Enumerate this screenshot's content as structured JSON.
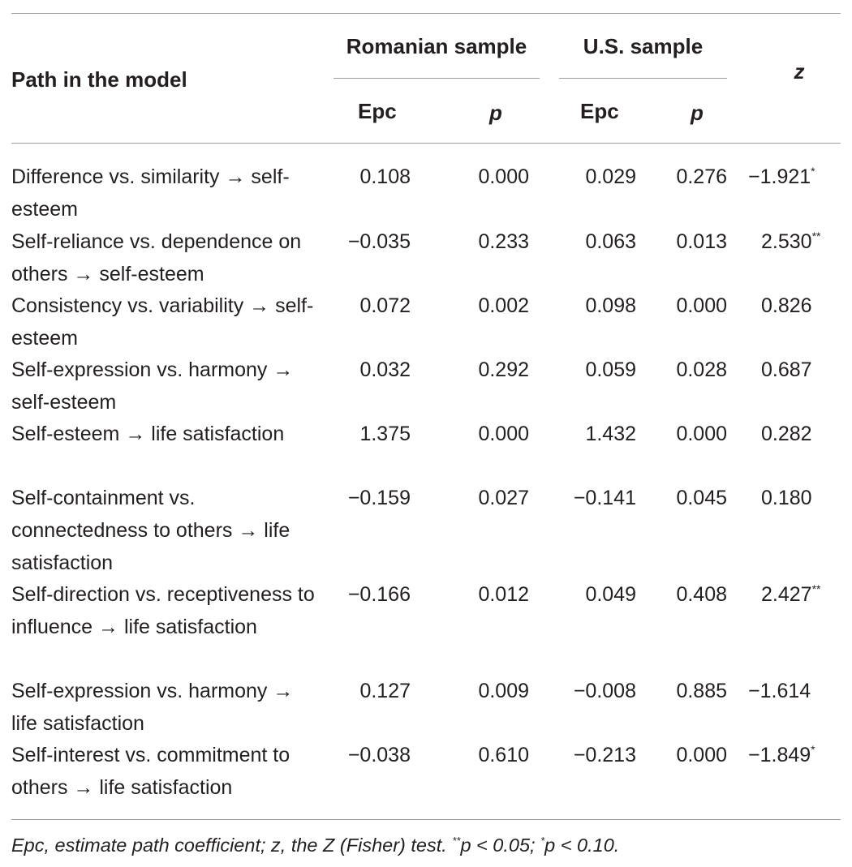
{
  "header": {
    "path_col": "Path in the model",
    "romanian": "Romanian sample",
    "us": "U.S. sample",
    "epc": "Epc",
    "p": "p",
    "z": "z"
  },
  "rows": [
    {
      "path": "Difference vs. similarity → self-esteem",
      "ro_epc": "0.108",
      "ro_p": "0.000",
      "us_epc": "0.029",
      "us_p": "0.276",
      "z": "−1.921",
      "z_sig": "*"
    },
    {
      "path": "Self-reliance vs. dependence on others → self-esteem",
      "ro_epc": "−0.035",
      "ro_p": "0.233",
      "us_epc": "0.063",
      "us_p": "0.013",
      "z": "2.530",
      "z_sig": "**"
    },
    {
      "path": "Consistency vs. variability → self-esteem",
      "ro_epc": "0.072",
      "ro_p": "0.002",
      "us_epc": "0.098",
      "us_p": "0.000",
      "z": "0.826",
      "z_sig": ""
    },
    {
      "path": "Self-expression vs. harmony → self-esteem",
      "ro_epc": "0.032",
      "ro_p": "0.292",
      "us_epc": "0.059",
      "us_p": "0.028",
      "z": "0.687",
      "z_sig": ""
    },
    {
      "path": "Self-esteem → life satisfaction",
      "ro_epc": "1.375",
      "ro_p": "0.000",
      "us_epc": "1.432",
      "us_p": "0.000",
      "z": "0.282",
      "z_sig": ""
    },
    {
      "path": "Self-containment vs. connectedness to others → life satisfaction",
      "ro_epc": "−0.159",
      "ro_p": "0.027",
      "us_epc": "−0.141",
      "us_p": "0.045",
      "z": "0.180",
      "z_sig": ""
    },
    {
      "path": "Self-direction vs. receptiveness to influence → life satisfaction",
      "ro_epc": "−0.166",
      "ro_p": "0.012",
      "us_epc": "0.049",
      "us_p": "0.408",
      "z": "2.427",
      "z_sig": "**"
    },
    {
      "path": "Self-expression vs. harmony → life satisfaction",
      "ro_epc": "0.127",
      "ro_p": "0.009",
      "us_epc": "−0.008",
      "us_p": "0.885",
      "z": "−1.614",
      "z_sig": ""
    },
    {
      "path": "Self-interest vs. commitment to others → life satisfaction",
      "ro_epc": "−0.038",
      "ro_p": "0.610",
      "us_epc": "−0.213",
      "us_p": "0.000",
      "z": "−1.849",
      "z_sig": "*"
    }
  ],
  "footnote": {
    "text_a": "Epc, estimate path coefficient; z, the Z (Fisher) test. ",
    "sig2": "**",
    "text_b": "p < 0.05; ",
    "sig1": "*",
    "text_c": "p < 0.10."
  }
}
